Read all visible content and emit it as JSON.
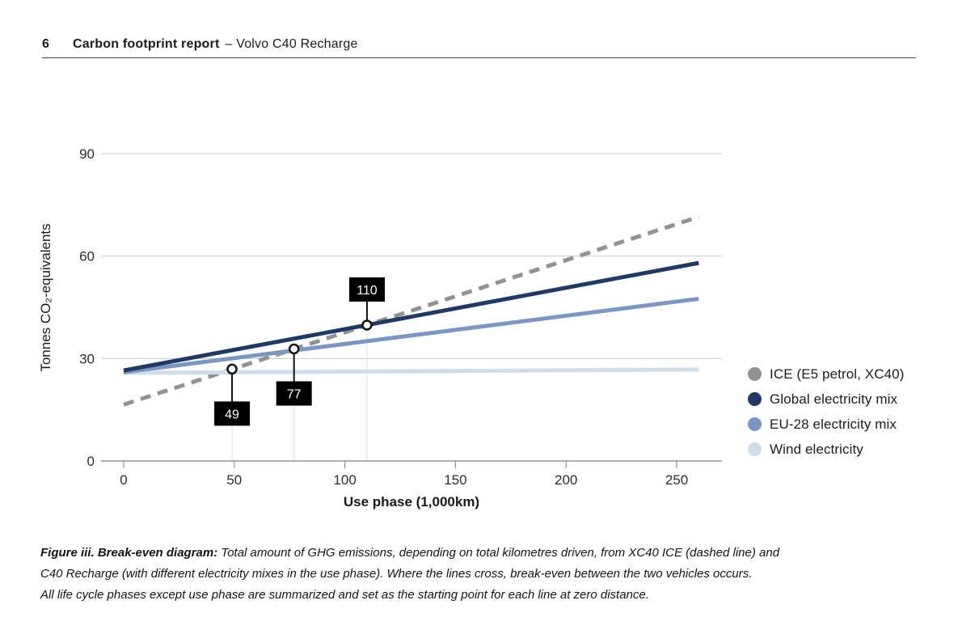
{
  "header": {
    "page_number": "6",
    "title_bold": "Carbon footprint report",
    "title_rest": "– Volvo C40 Recharge"
  },
  "chart_data": {
    "type": "line",
    "title": "",
    "xlabel": "Use phase (1,000km)",
    "ylabel": "Tonnes CO₂-equivalents",
    "x": [
      0,
      260
    ],
    "xlim": [
      0,
      260
    ],
    "ylim": [
      0,
      90
    ],
    "xticks": [
      "0",
      "50",
      "100",
      "150",
      "200",
      "250"
    ],
    "xtick_values": [
      0,
      50,
      100,
      150,
      200,
      250
    ],
    "yticks": [
      "0",
      "30",
      "60",
      "90"
    ],
    "ytick_values": [
      0,
      30,
      60,
      90
    ],
    "grid": "horizontal",
    "legend_position": "right",
    "series": [
      {
        "name": "ICE (E5 petrol, XC40)",
        "color": "#909295",
        "style": "dashed",
        "values": [
          16.5,
          71.5
        ]
      },
      {
        "name": "Global electricity mix",
        "color": "#1e3a64",
        "style": "solid",
        "values": [
          26.5,
          58.0
        ]
      },
      {
        "name": "EU-28 electricity mix",
        "color": "#7b96c3",
        "style": "solid",
        "values": [
          26.0,
          47.5
        ]
      },
      {
        "name": "Wind electricity",
        "color": "#cfddeb",
        "style": "solid",
        "values": [
          25.8,
          26.8
        ]
      }
    ],
    "breakeven_points": [
      {
        "label": "49",
        "x": 49,
        "y": 26.9,
        "callout": "below",
        "meaning": "break-even ICE vs Wind electricity"
      },
      {
        "label": "77",
        "x": 77,
        "y": 32.8,
        "callout": "below",
        "meaning": "break-even ICE vs EU-28 electricity mix"
      },
      {
        "label": "110",
        "x": 110,
        "y": 39.8,
        "callout": "above",
        "meaning": "break-even ICE vs Global electricity mix"
      }
    ],
    "colors": {
      "grid": "#c9cccc",
      "guide": "#dedede",
      "axis": "#8e9193",
      "tick_text": "#2b2e30",
      "annotation_bg": "#000000",
      "annotation_text": "#ffffff",
      "marker_fill": "#ffffff",
      "marker_stroke": "#101010"
    }
  },
  "caption": {
    "lead": "Figure iii. Break-even diagram:",
    "line1_rest": " Total amount of GHG emissions, depending on total kilometres driven, from XC40 ICE (dashed line) and",
    "line2": "C40 Recharge (with different electricity mixes in the use phase). Where the lines cross, break-even between the two vehicles occurs.",
    "line3": "All life cycle phases except use phase are summarized and set as the starting point for each line at zero distance."
  }
}
